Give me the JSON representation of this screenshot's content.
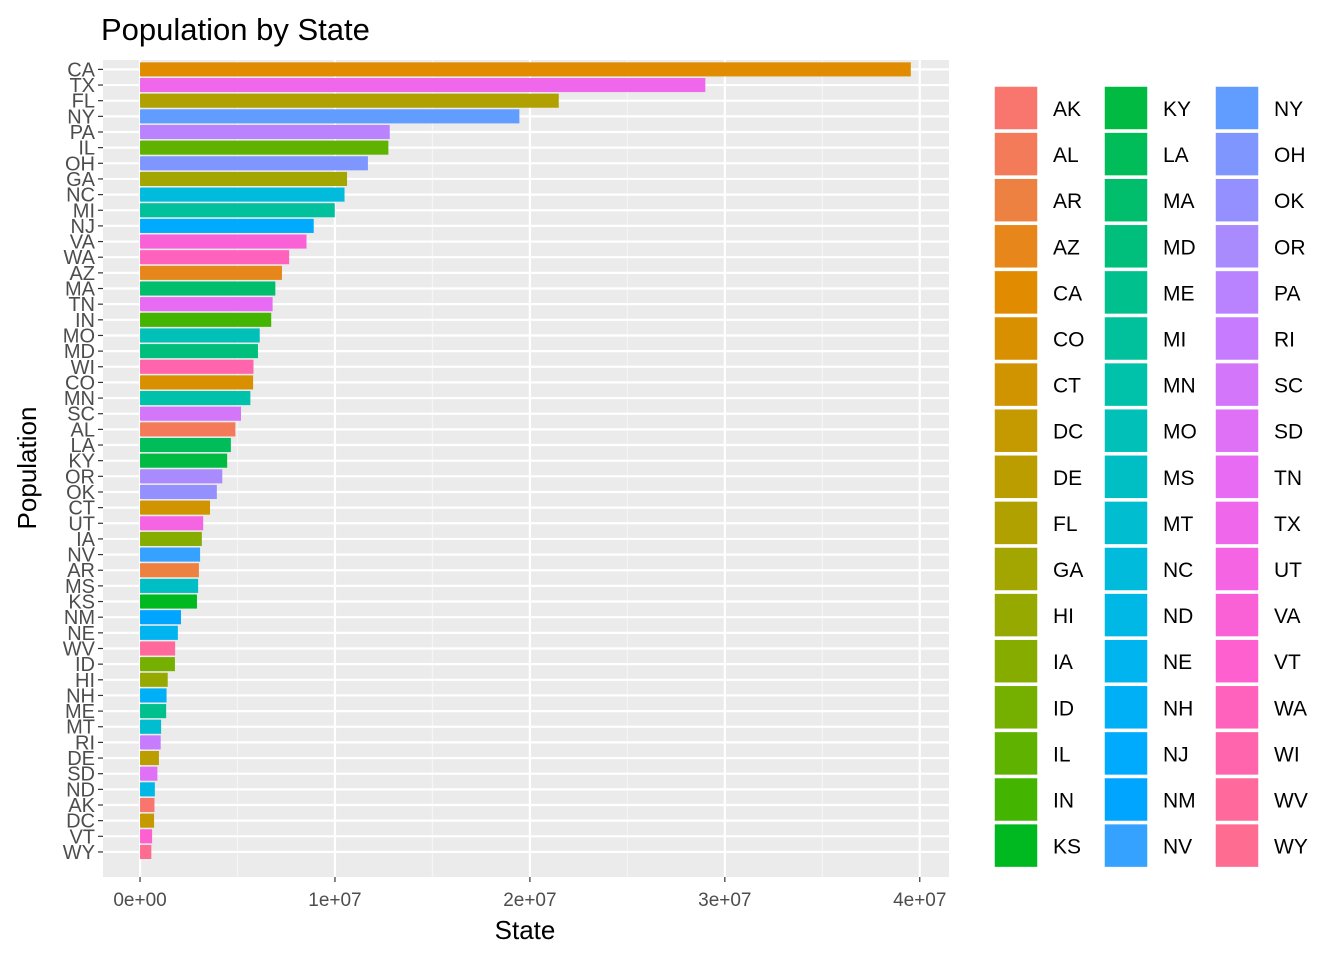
{
  "chart_data": {
    "type": "bar",
    "orientation": "horizontal",
    "title": "Population by State",
    "xlabel": "State",
    "ylabel": "Population",
    "xlim": [
      -1900000,
      41500000
    ],
    "x_ticks": [
      0,
      10000000,
      20000000,
      30000000,
      40000000
    ],
    "x_tick_labels": [
      "0e+00",
      "1e+07",
      "2e+07",
      "3e+07",
      "4e+07"
    ],
    "grid": true,
    "legend_position": "right",
    "categories": [
      "CA",
      "TX",
      "FL",
      "NY",
      "PA",
      "IL",
      "OH",
      "GA",
      "NC",
      "MI",
      "NJ",
      "VA",
      "WA",
      "AZ",
      "MA",
      "TN",
      "IN",
      "MO",
      "MD",
      "WI",
      "CO",
      "MN",
      "SC",
      "AL",
      "LA",
      "KY",
      "OR",
      "OK",
      "CT",
      "UT",
      "IA",
      "NV",
      "AR",
      "MS",
      "KS",
      "NM",
      "NE",
      "WV",
      "ID",
      "HI",
      "NH",
      "ME",
      "MT",
      "RI",
      "DE",
      "SD",
      "ND",
      "AK",
      "DC",
      "VT",
      "WY"
    ],
    "values": [
      39540000,
      29000000,
      21480000,
      19460000,
      12810000,
      12740000,
      11690000,
      10620000,
      10490000,
      9990000,
      8910000,
      8540000,
      7650000,
      7280000,
      6940000,
      6800000,
      6730000,
      6140000,
      6050000,
      5820000,
      5800000,
      5660000,
      5180000,
      4890000,
      4660000,
      4470000,
      4220000,
      3940000,
      3590000,
      3240000,
      3170000,
      3080000,
      3020000,
      2980000,
      2920000,
      2100000,
      1940000,
      1800000,
      1790000,
      1420000,
      1360000,
      1340000,
      1080000,
      1060000,
      970000,
      890000,
      760000,
      740000,
      720000,
      620000,
      580000
    ],
    "legend_entries": [
      "AK",
      "AL",
      "AR",
      "AZ",
      "CA",
      "CO",
      "CT",
      "DC",
      "DE",
      "FL",
      "GA",
      "HI",
      "IA",
      "ID",
      "IL",
      "IN",
      "KS",
      "KY",
      "LA",
      "MA",
      "MD",
      "ME",
      "MI",
      "MN",
      "MO",
      "MS",
      "MT",
      "NC",
      "ND",
      "NE",
      "NH",
      "NJ",
      "NM",
      "NV",
      "NY",
      "OH",
      "OK",
      "OR",
      "PA",
      "RI",
      "SC",
      "SD",
      "TN",
      "TX",
      "UT",
      "VA",
      "VT",
      "WA",
      "WI",
      "WV",
      "WY"
    ],
    "colors": [
      "#f8766d",
      "#f37b59",
      "#ed8141",
      "#e7861b",
      "#e08b00",
      "#d89000",
      "#cf9400",
      "#c59900",
      "#bb9d00",
      "#b0a100",
      "#a3a500",
      "#96a900",
      "#87ac00",
      "#75af00",
      "#5fb200",
      "#43b500",
      "#00b81f",
      "#00ba42",
      "#00bc59",
      "#00be6b",
      "#00bf7d",
      "#00c08d",
      "#00c19c",
      "#00c1aa",
      "#00c0b8",
      "#00bfc4",
      "#00bdd0",
      "#00bbdc",
      "#00b8e5",
      "#00b4ef",
      "#00b0f6",
      "#00abfd",
      "#00a5ff",
      "#35a2ff",
      "#619cff",
      "#7f96ff",
      "#9590ff",
      "#a98bfe",
      "#b983ff",
      "#c77cff",
      "#d376f9",
      "#de71f5",
      "#e76bf3",
      "#ef67eb",
      "#f564e3",
      "#fb61d7",
      "#fe61cf",
      "#ff62bc",
      "#ff65ad",
      "#ff699c",
      "#ff6c91"
    ]
  }
}
